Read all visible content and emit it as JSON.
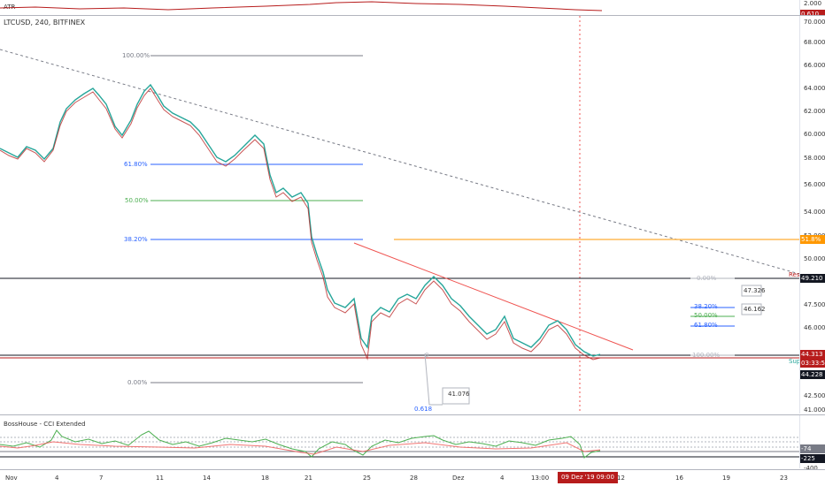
{
  "top_indicator": {
    "name": "ATR",
    "axis_ticks": [
      "2.000"
    ],
    "value_tag": "0.610",
    "tag_color": "#b71c1c"
  },
  "main": {
    "symbol": "LTCUSD, 240, BITFINEX",
    "price_ticks": [
      "70.000",
      "68.000",
      "66.000",
      "64.000",
      "62.000",
      "60.000",
      "58.000",
      "56.000",
      "54.000",
      "52.000",
      "50.000",
      "47.500",
      "46.000",
      "42.500",
      "41.000"
    ],
    "fib_levels": [
      "100.00%",
      "61.80%",
      "50.00%",
      "38.20%",
      "0.00%"
    ],
    "right_fib_levels": [
      "38.20%",
      "50.00%",
      "61.80%"
    ],
    "right_fib_values": [
      "47.326",
      "46.162"
    ],
    "small_labels": {
      "zero": "0.00%",
      "hundred": "100.00%",
      "q": "0"
    },
    "callout": {
      "value": "41.076",
      "fraction": "0.618"
    },
    "markers": {
      "res": "Res",
      "sup": "Sup"
    },
    "tags": {
      "level_orange": "51.8%",
      "res_price": "49.210",
      "current_price": "44.313",
      "countdown": "03:33:53",
      "sup_price": "44.228"
    },
    "colors": {
      "up": "#26a69a",
      "down": "#b71c1c",
      "trend": "#ef5350",
      "orange": "#ff9800",
      "fib_blue": "#2962ff",
      "fib_green": "#4caf50"
    }
  },
  "cci": {
    "title": "BossHouse - CCI Extended",
    "axis_ticks": [
      "0",
      "-400"
    ],
    "tags": {
      "a": "-74",
      "b": "-225"
    }
  },
  "time_axis": {
    "ticks": [
      "Nov",
      "4",
      "7",
      "11",
      "14",
      "18",
      "21",
      "25",
      "28",
      "Dez",
      "4",
      "13:00",
      "12",
      "16",
      "19",
      "23"
    ],
    "selected": "09 Dez '19   09:00"
  }
}
